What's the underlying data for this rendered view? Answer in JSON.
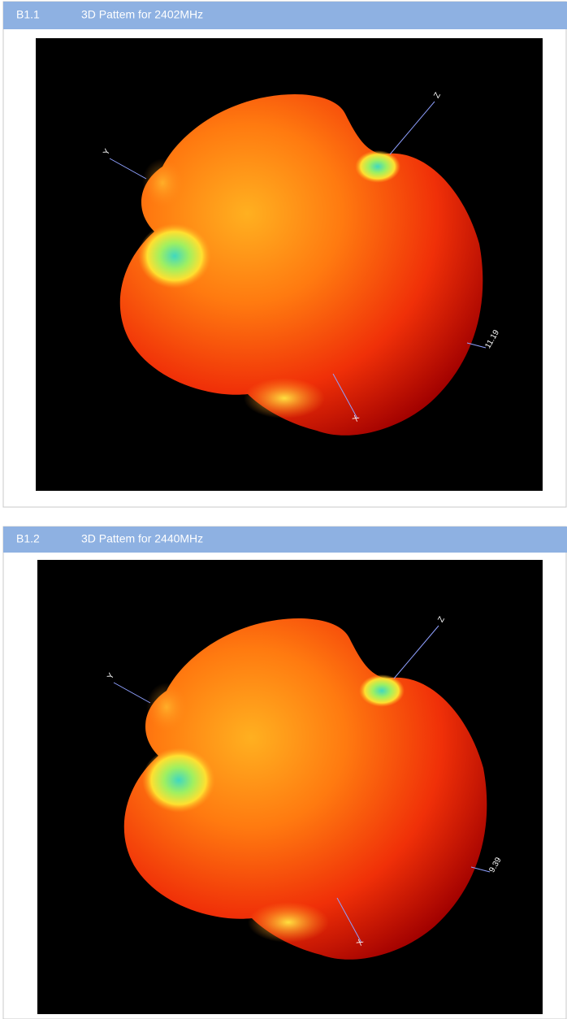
{
  "sections": [
    {
      "number": "B1.1",
      "title": "3D Pattem for 2402MHz",
      "axes": {
        "y": "Y",
        "z": "Z",
        "x": "X"
      },
      "value_label": "11.19"
    },
    {
      "number": "B1.2",
      "title": "3D Pattem for 2440MHz",
      "axes": {
        "y": "Y",
        "z": "Z",
        "x": "X"
      },
      "value_label": "9.39"
    }
  ]
}
